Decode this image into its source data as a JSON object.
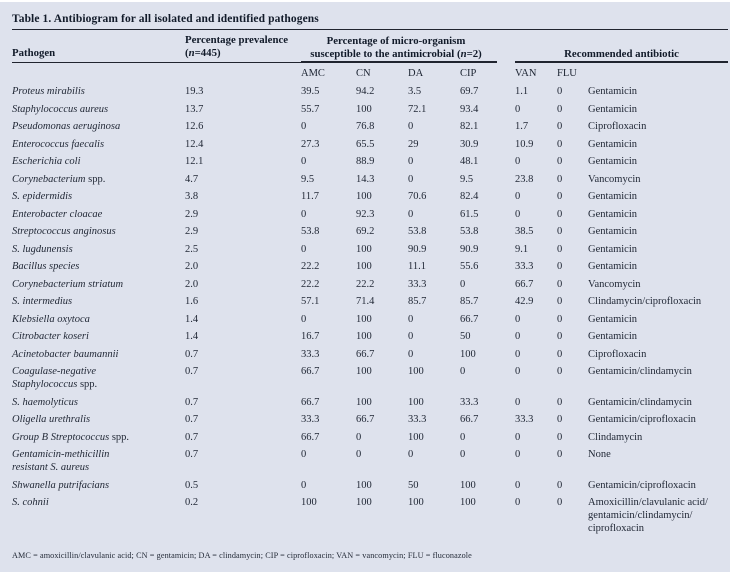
{
  "title": "Table 1. Antibiogram for all isolated and identified pathogens",
  "header": {
    "pathogen": "Pathogen",
    "prevalence": {
      "line1": "Percentage prevalence",
      "n_open": "(",
      "n": "n",
      "n_rest": "=445)"
    },
    "group": {
      "line1": "Percentage of micro-organism",
      "line2_pre": "susceptible to the antimicrobial (",
      "n": "n",
      "line2_post": "=2)"
    },
    "recommended": "Recommended antibiotic",
    "subcolumns": [
      "AMC",
      "CN",
      "DA",
      "CIP",
      "VAN",
      "FLU"
    ]
  },
  "rows": [
    {
      "pathogen": "Proteus mirabilis",
      "prev": "19.3",
      "amc": "39.5",
      "cn": "94.2",
      "da": "3.5",
      "cip": "69.7",
      "van": "1.1",
      "flu": "0",
      "antibiotic": "Gentamicin"
    },
    {
      "pathogen": "Staphylococcus aureus",
      "prev": "13.7",
      "amc": "55.7",
      "cn": "100",
      "da": "72.1",
      "cip": "93.4",
      "van": "0",
      "flu": "0",
      "antibiotic": "Gentamicin"
    },
    {
      "pathogen": "Pseudomonas aeruginosa",
      "prev": "12.6",
      "amc": "0",
      "cn": "76.8",
      "da": "0",
      "cip": "82.1",
      "van": "1.7",
      "flu": "0",
      "antibiotic": "Ciprofloxacin"
    },
    {
      "pathogen": "Enterococcus faecalis",
      "prev": "12.4",
      "amc": "27.3",
      "cn": "65.5",
      "da": "29",
      "cip": "30.9",
      "van": "10.9",
      "flu": "0",
      "antibiotic": "Gentamicin"
    },
    {
      "pathogen": "Escherichia coli",
      "prev": "12.1",
      "amc": "0",
      "cn": "88.9",
      "da": "0",
      "cip": "48.1",
      "van": "0",
      "flu": "0",
      "antibiotic": "Gentamicin"
    },
    {
      "pathogen": "Corynebacterium",
      "suffix": "spp.",
      "prev": "4.7",
      "amc": "9.5",
      "cn": "14.3",
      "da": "0",
      "cip": "9.5",
      "van": "23.8",
      "flu": "0",
      "antibiotic": "Vancomycin"
    },
    {
      "pathogen": "S. epidermidis",
      "prev": "3.8",
      "amc": "11.7",
      "cn": "100",
      "da": "70.6",
      "cip": "82.4",
      "van": "0",
      "flu": "0",
      "antibiotic": "Gentamicin"
    },
    {
      "pathogen": "Enterobacter cloacae",
      "prev": "2.9",
      "amc": "0",
      "cn": "92.3",
      "da": "0",
      "cip": "61.5",
      "van": "0",
      "flu": "0",
      "antibiotic": "Gentamicin"
    },
    {
      "pathogen": "Streptococcus anginosus",
      "prev": "2.9",
      "amc": "53.8",
      "cn": "69.2",
      "da": "53.8",
      "cip": "53.8",
      "van": "38.5",
      "flu": "0",
      "antibiotic": "Gentamicin"
    },
    {
      "pathogen": "S. lugdunensis",
      "prev": "2.5",
      "amc": "0",
      "cn": "100",
      "da": "90.9",
      "cip": "90.9",
      "van": "9.1",
      "flu": "0",
      "antibiotic": "Gentamicin"
    },
    {
      "pathogen": "Bacillus species",
      "prev": "2.0",
      "amc": "22.2",
      "cn": "100",
      "da": "11.1",
      "cip": "55.6",
      "van": "33.3",
      "flu": "0",
      "antibiotic": "Gentamicin"
    },
    {
      "pathogen": "Corynebacterium striatum",
      "prev": "2.0",
      "amc": "22.2",
      "cn": "22.2",
      "da": "33.3",
      "cip": "0",
      "van": "66.7",
      "flu": "0",
      "antibiotic": "Vancomycin"
    },
    {
      "pathogen": "S. intermedius",
      "prev": "1.6",
      "amc": "57.1",
      "cn": "71.4",
      "da": "85.7",
      "cip": "85.7",
      "van": "42.9",
      "flu": "0",
      "antibiotic": "Clindamycin/ciprofloxacin"
    },
    {
      "pathogen": "Klebsiella oxytoca",
      "prev": "1.4",
      "amc": "0",
      "cn": "100",
      "da": "0",
      "cip": "66.7",
      "van": "0",
      "flu": "0",
      "antibiotic": "Gentamicin"
    },
    {
      "pathogen": "Citrobacter koseri",
      "prev": "1.4",
      "amc": "16.7",
      "cn": "100",
      "da": "0",
      "cip": "50",
      "van": "0",
      "flu": "0",
      "antibiotic": "Gentamicin"
    },
    {
      "pathogen": "Acinetobacter baumannii",
      "prev": "0.7",
      "amc": "33.3",
      "cn": "66.7",
      "da": "0",
      "cip": "100",
      "van": "0",
      "flu": "0",
      "antibiotic": "Ciprofloxacin"
    },
    {
      "pathogen": [
        "Coagulase-negative",
        "Staphylococcus"
      ],
      "suffix": "spp.",
      "prev": "0.7",
      "amc": "66.7",
      "cn": "100",
      "da": "100",
      "cip": "0",
      "van": "0",
      "flu": "0",
      "antibiotic": "Gentamicin/clindamycin"
    },
    {
      "pathogen": "S. haemolyticus",
      "prev": "0.7",
      "amc": "66.7",
      "cn": "100",
      "da": "100",
      "cip": "33.3",
      "van": "0",
      "flu": "0",
      "antibiotic": "Gentamicin/clindamycin"
    },
    {
      "pathogen": "Oligella urethralis",
      "prev": "0.7",
      "amc": "33.3",
      "cn": "66.7",
      "da": "33.3",
      "cip": "66.7",
      "van": "33.3",
      "flu": "0",
      "antibiotic": "Gentamicin/ciprofloxacin"
    },
    {
      "pathogen": "Group B Streptococcus",
      "suffix": "spp.",
      "prev": "0.7",
      "amc": "66.7",
      "cn": "0",
      "da": "100",
      "cip": "0",
      "van": "0",
      "flu": "0",
      "antibiotic": "Clindamycin"
    },
    {
      "pathogen": [
        "Gentamicin-methicillin",
        "resistant S. aureus"
      ],
      "prev": "0.7",
      "amc": "0",
      "cn": "0",
      "da": "0",
      "cip": "0",
      "van": "0",
      "flu": "0",
      "antibiotic": "None"
    },
    {
      "pathogen": "Shwanella putrifacians",
      "prev": "0.5",
      "amc": "0",
      "cn": "100",
      "da": "50",
      "cip": "100",
      "van": "0",
      "flu": "0",
      "antibiotic": "Gentamicin/ciprofloxacin"
    },
    {
      "pathogen": "S. cohnii",
      "prev": "0.2",
      "amc": "100",
      "cn": "100",
      "da": "100",
      "cip": "100",
      "van": "0",
      "flu": "0",
      "antibiotic": [
        "Amoxicillin/clavulanic acid/",
        "gentamicin/clindamycin/",
        "ciprofloxacin"
      ]
    }
  ],
  "footnote": "AMC = amoxicillin/clavulanic acid; CN = gentamicin; DA = clindamycin; CIP = ciprofloxacin; VAN = vancomycin; FLU = fluconazole",
  "colors": {
    "panel_bg": "#dee2ed",
    "text": "#1f2634",
    "bold_text": "#121b2a",
    "rule": "#20242f"
  }
}
